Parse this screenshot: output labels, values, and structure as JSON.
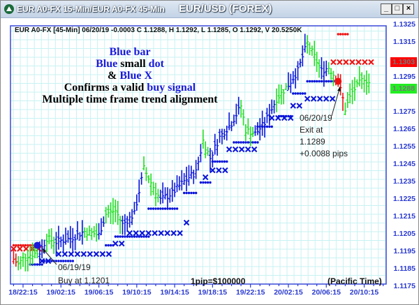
{
  "window": {
    "title": "EUR A0-FX 15-Min/EUR A0-FX 45-Min",
    "symbol_title": "EUR/USD (FOREX)",
    "minimize": "_",
    "maximize": "□",
    "close": "×"
  },
  "info_line": "EUR A0-FX [45-Min] 06/20/19  -0.0003 C 1.1288, H 1.1292, L 1.1285, O 1.1292, V 20.5250K",
  "annotation": {
    "line1": {
      "a": "Blue bar"
    },
    "line2": {
      "a": "Blue",
      "b": " small ",
      "c": "dot"
    },
    "line3": {
      "a": "& ",
      "b": "Blue X"
    },
    "line4": {
      "a": "Confirms a valid ",
      "b": "buy signal"
    },
    "line5": "Multiple time frame trend alignment"
  },
  "buy_note": {
    "date": "06/19/19",
    "text": "Buy at 1.1201"
  },
  "exit_note": {
    "date": "06/20/19",
    "line2": "Exit at",
    "line3": "1.1289",
    "line4": "+0.0088 pips"
  },
  "pip_value": "1pip=$100000",
  "timezone": "(Pacific Time)",
  "price_badges": {
    "red": {
      "value": "1.1303",
      "color": "#ff0000"
    },
    "green": {
      "value": "1.1288",
      "color": "#22ee22"
    }
  },
  "chart_data": {
    "type": "ohlc-bar",
    "ylim": [
      1.1175,
      1.1325
    ],
    "y_ticks": [
      "1.1325",
      "1.1315",
      "1.1295",
      "1.1275",
      "1.1265",
      "1.1255",
      "1.1245",
      "1.1235",
      "1.1225",
      "1.1215",
      "1.1205",
      "1.1195",
      "1.1185",
      "1.1175"
    ],
    "x_ticks": [
      "18/22:15",
      "19/02:15",
      "19/06:15",
      "19/10:15",
      "19/14:15",
      "19/18:15",
      "19/22:15",
      "20/02:15",
      "20/06:15",
      "20/10:15"
    ],
    "grid": true,
    "colors": {
      "blue": "#0a14d8",
      "green": "#22dd22",
      "red": "#ee1111",
      "grid": "#c8f2f2"
    },
    "price_path": [
      [
        "18/21:15",
        1.119,
        "red"
      ],
      [
        "18/21:45",
        1.1187,
        "red"
      ],
      [
        "18/22:30",
        1.1192,
        "green"
      ],
      [
        "19/00:00",
        1.1194,
        "green"
      ],
      [
        "19/00:45",
        1.1202,
        "blue"
      ],
      [
        "19/01:45",
        1.12,
        "green"
      ],
      [
        "19/03:15",
        1.1202,
        "blue"
      ],
      [
        "19/04:45",
        1.1206,
        "blue"
      ],
      [
        "19/06:15",
        1.1204,
        "green"
      ],
      [
        "19/07:00",
        1.1216,
        "blue"
      ],
      [
        "19/08:00",
        1.1218,
        "green"
      ],
      [
        "19/08:45",
        1.121,
        "green"
      ],
      [
        "19/10:00",
        1.1216,
        "blue"
      ],
      [
        "19/11:00",
        1.1242,
        "blue"
      ],
      [
        "19/11:45",
        1.1234,
        "green"
      ],
      [
        "19/12:45",
        1.1224,
        "green"
      ],
      [
        "19/14:00",
        1.1228,
        "blue"
      ],
      [
        "19/15:30",
        1.1236,
        "blue"
      ],
      [
        "19/16:30",
        1.124,
        "blue"
      ],
      [
        "19/17:15",
        1.1258,
        "blue"
      ],
      [
        "19/18:00",
        1.1248,
        "green"
      ],
      [
        "19/19:00",
        1.126,
        "blue"
      ],
      [
        "19/20:15",
        1.1268,
        "blue"
      ],
      [
        "19/21:15",
        1.1278,
        "blue"
      ],
      [
        "19/21:45",
        1.1264,
        "green"
      ],
      [
        "19/22:45",
        1.1262,
        "green"
      ],
      [
        "19/23:45",
        1.1268,
        "blue"
      ],
      [
        "20/01:00",
        1.1282,
        "blue"
      ],
      [
        "20/02:15",
        1.129,
        "green"
      ],
      [
        "20/03:15",
        1.1298,
        "blue"
      ],
      [
        "20/04:15",
        1.1314,
        "blue"
      ],
      [
        "20/05:00",
        1.1306,
        "green"
      ],
      [
        "20/05:45",
        1.1298,
        "green"
      ],
      [
        "20/06:30",
        1.13,
        "blue"
      ],
      [
        "20/07:15",
        1.1294,
        "green"
      ],
      [
        "20/07:30",
        1.1292,
        "red"
      ],
      [
        "20/08:00",
        1.1282,
        "red"
      ],
      [
        "20/08:15",
        1.1276,
        "red"
      ],
      [
        "20/09:00",
        1.1286,
        "green"
      ],
      [
        "20/10:15",
        1.1294,
        "green"
      ],
      [
        "20/11:00",
        1.129,
        "green"
      ]
    ],
    "blue_dot_stops": [
      [
        "18/23:00",
        "19/00:15",
        1.1187
      ],
      [
        "19/00:15",
        "19/03:30",
        1.1189
      ],
      [
        "19/07:00",
        "19/07:45",
        1.1198
      ],
      [
        "19/08:00",
        "19/11:45",
        1.1203
      ],
      [
        "19/11:30",
        "19/14:30",
        1.1219
      ],
      [
        "19/15:15",
        "19/16:30",
        1.1228
      ],
      [
        "19/17:00",
        "19/18:00",
        1.1234
      ],
      [
        "19/18:15",
        "19/19:45",
        1.1246
      ],
      [
        "19/20:30",
        "19/23:00",
        1.1257
      ],
      [
        "19/23:00",
        "20/00:30",
        1.1266
      ],
      [
        "20/01:15",
        "20/02:30",
        1.1272
      ],
      [
        "20/02:45",
        "20/04:00",
        1.1285
      ],
      [
        "20/04:15",
        "20/07:30",
        1.1292
      ]
    ],
    "blue_x_stops": [
      [
        "19/00:15",
        "19/01:30",
        1.1189
      ],
      [
        "19/02:00",
        "19/07:45",
        1.1193
      ],
      [
        "19/08:00",
        "19/09:15",
        1.1199
      ],
      [
        "19/09:30",
        "19/15:15",
        1.1205
      ],
      [
        "19/15:30",
        "19/15:30",
        1.1211
      ],
      [
        "19/17:30",
        "19/17:30",
        1.1237
      ],
      [
        "19/18:15",
        "19/19:45",
        1.1241
      ],
      [
        "19/20:00",
        "19/23:00",
        1.1253
      ],
      [
        "20/00:30",
        "20/02:30",
        1.1271
      ],
      [
        "20/02:45",
        "20/04:00",
        1.1278
      ],
      [
        "20/04:15",
        "20/07:00",
        1.1282
      ]
    ],
    "red_x_stops": [
      [
        "18/21:15",
        "19/00:00",
        1.1196
      ],
      [
        "20/07:00",
        "20/11:15",
        1.1303
      ]
    ],
    "red_dot_stops": [
      [
        "18/21:15",
        "18/23:30",
        1.1198
      ],
      [
        "20/07:30",
        "20/08:30",
        1.1319
      ]
    ],
    "signals": [
      {
        "type": "buy",
        "time": "18/23:45",
        "price": 1.1198,
        "color": "#1a1ad8"
      },
      {
        "type": "exit",
        "time": "20/07:30",
        "price": 1.1292,
        "color": "#ee1111"
      }
    ]
  }
}
